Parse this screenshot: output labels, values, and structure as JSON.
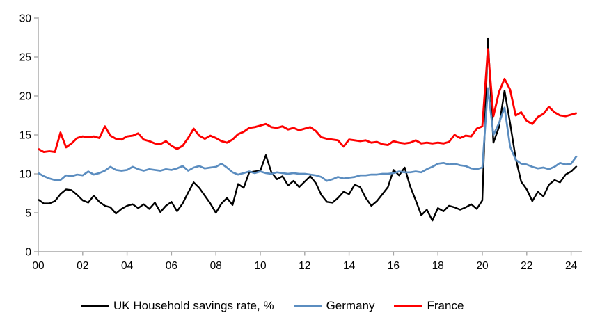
{
  "chart_data": {
    "type": "line",
    "title": "",
    "xlabel": "",
    "ylabel": "",
    "grid": false,
    "legend_position": "bottom",
    "ylim": [
      0,
      30
    ],
    "y_ticks": [
      0,
      5,
      10,
      15,
      20,
      25,
      30
    ],
    "x_ticks": [
      "00",
      "02",
      "04",
      "06",
      "08",
      "10",
      "12",
      "14",
      "16",
      "18",
      "20",
      "22",
      "24"
    ],
    "x_tick_years": [
      2000,
      2002,
      2004,
      2006,
      2008,
      2010,
      2012,
      2014,
      2016,
      2018,
      2020,
      2022,
      2024
    ],
    "x_start_year": 2000,
    "x_step_years": 0.25,
    "frequency": "quarterly",
    "axis_color": "#a6a6a6",
    "series": [
      {
        "name": "UK Household savings rate, %",
        "color": "#000000",
        "values": [
          6.7,
          6.2,
          6.2,
          6.5,
          7.4,
          8.0,
          7.9,
          7.3,
          6.6,
          6.3,
          7.2,
          6.4,
          5.9,
          5.7,
          4.9,
          5.5,
          5.9,
          6.1,
          5.6,
          6.1,
          5.5,
          6.3,
          5.1,
          5.9,
          6.4,
          5.2,
          6.2,
          7.6,
          8.9,
          8.2,
          7.2,
          6.2,
          5.0,
          6.2,
          6.9,
          6.0,
          8.7,
          8.2,
          10.2,
          10.3,
          10.4,
          12.4,
          10.2,
          9.3,
          9.7,
          8.5,
          9.1,
          8.3,
          9.0,
          9.7,
          8.8,
          7.3,
          6.4,
          6.3,
          6.9,
          7.7,
          7.4,
          8.6,
          8.3,
          6.9,
          5.9,
          6.5,
          7.4,
          8.3,
          10.5,
          9.8,
          10.8,
          8.4,
          6.6,
          4.7,
          5.4,
          4.0,
          5.6,
          5.2,
          5.9,
          5.7,
          5.4,
          5.7,
          6.1,
          5.5,
          6.6,
          27.4,
          14.0,
          16.0,
          20.7,
          16.5,
          12.0,
          9.0,
          8.0,
          6.5,
          7.7,
          7.1,
          8.6,
          9.2,
          8.9,
          9.9,
          10.3,
          11.0
        ]
      },
      {
        "name": "Germany",
        "color": "#5b8dc0",
        "values": [
          10.1,
          9.7,
          9.4,
          9.2,
          9.2,
          9.8,
          9.7,
          9.9,
          9.8,
          10.3,
          9.9,
          10.1,
          10.4,
          10.9,
          10.5,
          10.4,
          10.5,
          10.9,
          10.6,
          10.4,
          10.6,
          10.5,
          10.4,
          10.6,
          10.5,
          10.7,
          11.0,
          10.4,
          10.8,
          11.0,
          10.7,
          10.8,
          10.9,
          11.3,
          10.8,
          10.2,
          9.9,
          10.1,
          10.3,
          10.1,
          10.3,
          10.1,
          10.0,
          10.2,
          10.1,
          10.0,
          10.1,
          10.0,
          10.0,
          9.9,
          9.8,
          9.6,
          9.1,
          9.3,
          9.6,
          9.4,
          9.5,
          9.6,
          9.8,
          9.8,
          9.9,
          9.9,
          10.0,
          10.0,
          10.1,
          10.3,
          10.2,
          10.2,
          10.3,
          10.2,
          10.6,
          10.9,
          11.3,
          11.4,
          11.2,
          11.3,
          11.1,
          11.0,
          10.7,
          10.6,
          10.8,
          21.0,
          15.0,
          16.5,
          18.5,
          13.5,
          11.8,
          11.3,
          11.2,
          10.9,
          10.7,
          10.8,
          10.6,
          10.9,
          11.4,
          11.2,
          11.3,
          12.3
        ]
      },
      {
        "name": "France",
        "color": "#fe0000",
        "values": [
          13.2,
          12.8,
          12.9,
          12.8,
          15.3,
          13.4,
          13.9,
          14.6,
          14.8,
          14.7,
          14.8,
          14.6,
          16.1,
          14.9,
          14.5,
          14.4,
          14.8,
          14.9,
          15.2,
          14.4,
          14.2,
          13.9,
          13.8,
          14.2,
          13.6,
          13.2,
          13.6,
          14.6,
          15.8,
          14.9,
          14.5,
          14.9,
          14.6,
          14.2,
          14.0,
          14.4,
          15.1,
          15.4,
          15.9,
          16.0,
          16.2,
          16.4,
          16.0,
          15.9,
          16.1,
          15.7,
          15.9,
          15.6,
          15.8,
          16.0,
          15.5,
          14.7,
          14.5,
          14.4,
          14.3,
          13.5,
          14.4,
          14.3,
          14.2,
          14.3,
          14.0,
          14.1,
          13.8,
          13.7,
          14.2,
          14.0,
          13.9,
          14.0,
          14.3,
          13.9,
          14.0,
          13.9,
          14.0,
          13.9,
          14.1,
          15.0,
          14.6,
          14.9,
          14.8,
          15.8,
          16.1,
          26.0,
          17.4,
          20.5,
          22.2,
          20.8,
          17.5,
          17.9,
          16.8,
          16.4,
          17.3,
          17.7,
          18.6,
          17.9,
          17.5,
          17.4,
          17.6,
          17.8
        ]
      }
    ]
  },
  "legend": {
    "uk_label": "UK Household savings rate, %",
    "germany_label": "Germany",
    "france_label": "France"
  }
}
